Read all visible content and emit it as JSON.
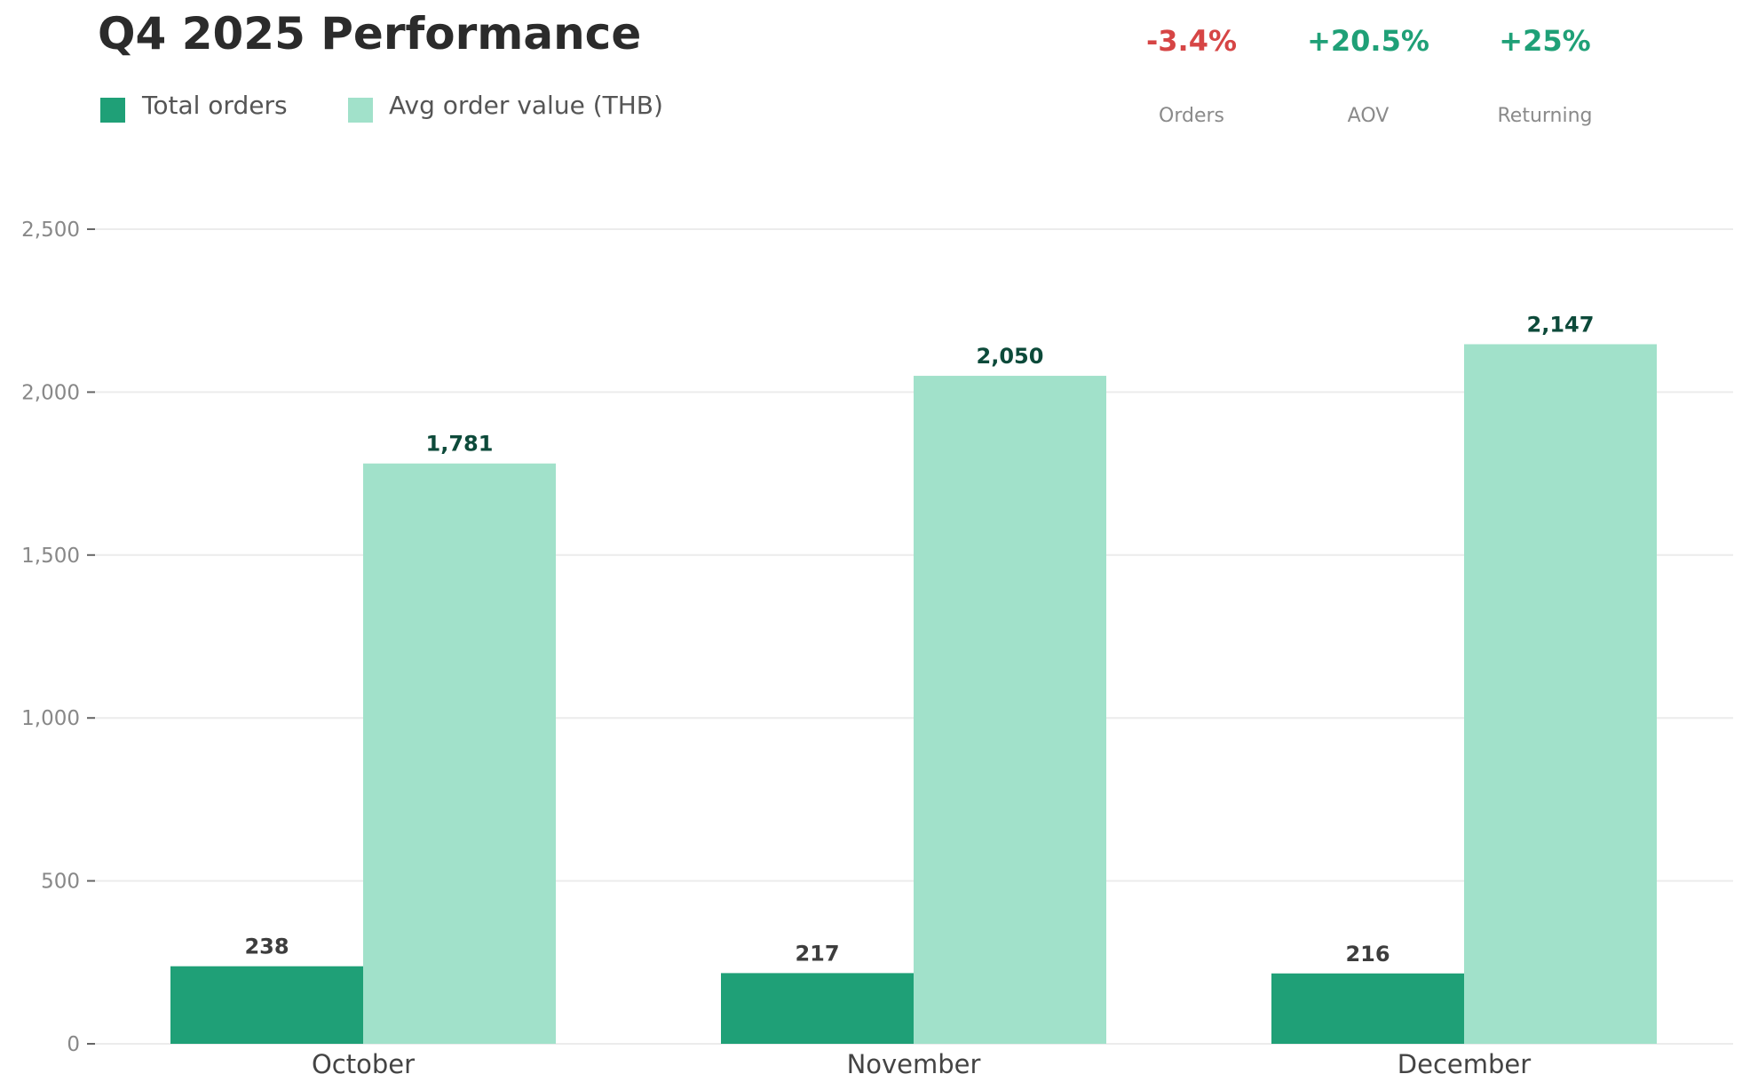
{
  "colors": {
    "orders": "#1fa077",
    "aov": "#a1e1ca",
    "orders_label": "#3d3d3d",
    "aov_label": "#0d4a3a",
    "negative": "#d64545",
    "positive": "#1fa077",
    "grid": "#ececec"
  },
  "kpis": [
    {
      "value": "-3.4%",
      "label": "Orders",
      "tone": "negative"
    },
    {
      "value": "+20.5%",
      "label": "AOV",
      "tone": "positive"
    },
    {
      "value": "+25%",
      "label": "Returning",
      "tone": "positive"
    }
  ],
  "chart_data": {
    "type": "bar",
    "title": "Q4 2025 Performance",
    "xlabel": "",
    "ylabel": "",
    "categories": [
      "October",
      "November",
      "December"
    ],
    "series": [
      {
        "name": "Total orders",
        "values": [
          238,
          217,
          216
        ],
        "value_labels": [
          "238",
          "217",
          "216"
        ]
      },
      {
        "name": "Avg order value (THB)",
        "values": [
          1781,
          2050,
          2147
        ],
        "value_labels": [
          "1,781",
          "2,050",
          "2,147"
        ]
      }
    ],
    "ylim": [
      0,
      2500
    ],
    "yticks": [
      0,
      500,
      1000,
      1500,
      2000,
      2500
    ],
    "ytick_labels": [
      "0",
      "500",
      "1,000",
      "1,500",
      "2,000",
      "2,500"
    ],
    "grid": true,
    "legend_position": "top-left"
  }
}
